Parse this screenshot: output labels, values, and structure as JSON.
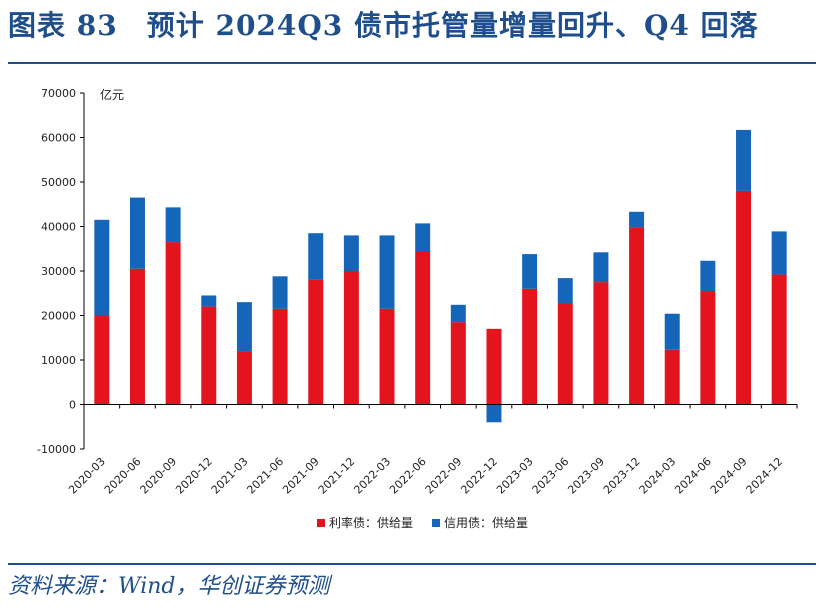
{
  "figure": {
    "title": "图表 83　预计 2024Q3 债市托管量增量回升、Q4 回落",
    "source": "资料来源：Wind，华创证券预测"
  },
  "chart_data": {
    "type": "bar",
    "stacked": true,
    "unit_label": "亿元",
    "ylim": [
      -10000,
      70000
    ],
    "yticks": [
      -10000,
      0,
      10000,
      20000,
      30000,
      40000,
      50000,
      60000,
      70000
    ],
    "categories": [
      "2020-03",
      "2020-06",
      "2020-09",
      "2020-12",
      "2021-03",
      "2021-06",
      "2021-09",
      "2021-12",
      "2022-03",
      "2022-06",
      "2022-09",
      "2022-12",
      "2023-03",
      "2023-06",
      "2023-09",
      "2023-12",
      "2024-03",
      "2024-06",
      "2024-09",
      "2024-12"
    ],
    "series": [
      {
        "name": "利率债：供给量",
        "color": "#e3141e",
        "values": [
          20000,
          30500,
          36500,
          22000,
          12000,
          21500,
          28000,
          30000,
          21500,
          34500,
          18500,
          17000,
          26000,
          22700,
          27500,
          39800,
          12300,
          25500,
          48000,
          29200
        ]
      },
      {
        "name": "信用债：供给量",
        "color": "#1565b8",
        "values": [
          21500,
          16000,
          7800,
          2500,
          11000,
          7300,
          10500,
          8000,
          16500,
          6200,
          3900,
          -4000,
          7800,
          5700,
          6700,
          3500,
          8100,
          6800,
          13700,
          9700
        ]
      }
    ],
    "legend_position": "bottom",
    "grid": false
  }
}
